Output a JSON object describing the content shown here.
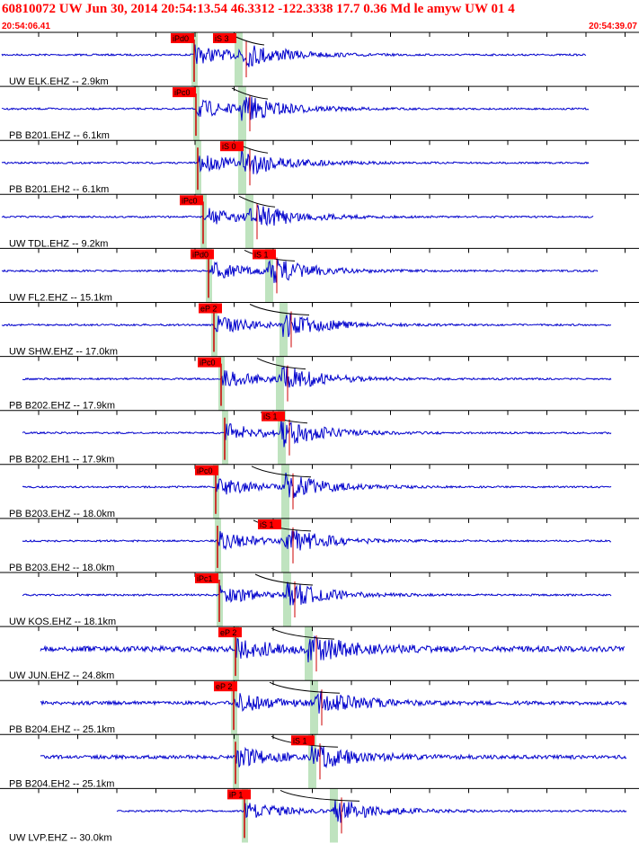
{
  "header": {
    "title": "60810072 UW Jun 30, 2014 20:54:13.54   46.3312 -122.3338 17.7 0.36 Md le amyw UW 01   4",
    "start_time": "20:54:06.41",
    "end_time": "20:54:39.07"
  },
  "traces": [
    {
      "label": "UW ELK.EHZ -- 2.9km",
      "picks": [
        "iPd0",
        "iS 3"
      ]
    },
    {
      "label": "PB B201.EHZ -- 6.1km",
      "picks": [
        "iPc0"
      ]
    },
    {
      "label": "PB B201.EH2 -- 6.1km",
      "picks": [
        "iS 0"
      ]
    },
    {
      "label": "UW TDL.EHZ -- 9.2km",
      "picks": [
        "iPc0"
      ]
    },
    {
      "label": "UW FL2.EHZ -- 15.1km",
      "picks": [
        "iPd0",
        "iS 1"
      ]
    },
    {
      "label": "UW SHW.EHZ -- 17.0km",
      "picks": [
        "eP 2"
      ]
    },
    {
      "label": "PB B202.EHZ -- 17.9km",
      "picks": [
        "iPc0"
      ]
    },
    {
      "label": "PB B202.EH1 -- 17.9km",
      "picks": [
        "iS 1"
      ]
    },
    {
      "label": "PB B203.EHZ -- 18.0km",
      "picks": [
        "iPc0"
      ]
    },
    {
      "label": "PB B203.EH2 -- 18.0km",
      "picks": [
        "iS 1"
      ]
    },
    {
      "label": "UW KOS.EHZ -- 18.1km",
      "picks": [
        "iPc1"
      ]
    },
    {
      "label": "UW JUN.EHZ -- 24.8km",
      "picks": [
        "eP 2"
      ]
    },
    {
      "label": "PB B204.EHZ -- 25.1km",
      "picks": [
        "eP 2"
      ]
    },
    {
      "label": "PB B204.EH2 -- 25.1km",
      "picks": [
        "iS 1"
      ]
    },
    {
      "label": "UW LVP.EHZ -- 30.0km",
      "picks": [
        "iP 1"
      ]
    }
  ]
}
